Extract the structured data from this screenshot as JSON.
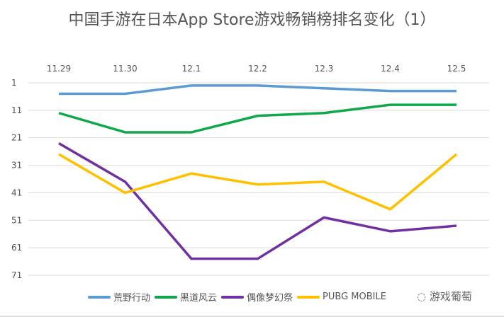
{
  "chart_data": {
    "type": "line",
    "title": "中国手游在日本App Store游戏畅销榜排名变化（1）",
    "categories": [
      "11.29",
      "11.30",
      "12.1",
      "12.2",
      "12.3",
      "12.4",
      "12.5"
    ],
    "y_ticks": [
      1,
      11,
      21,
      31,
      41,
      51,
      61,
      71
    ],
    "ylim": [
      1,
      71
    ],
    "y_reversed": true,
    "x_axis_position": "top",
    "grid": true,
    "legend_position": "bottom",
    "series": [
      {
        "name": "荒野行动",
        "color": "#5b9bd5",
        "values": [
          5,
          5,
          2,
          2,
          3,
          4,
          4
        ]
      },
      {
        "name": "黑道风云",
        "color": "#0fa84a",
        "values": [
          12,
          19,
          19,
          13,
          12,
          9,
          9
        ]
      },
      {
        "name": "偶像梦幻祭",
        "color": "#7030a0",
        "values": [
          23,
          37,
          65,
          65,
          50,
          55,
          53
        ]
      },
      {
        "name": "PUBG MOBILE",
        "color": "#ffc000",
        "values": [
          27,
          41,
          34,
          38,
          37,
          47,
          27
        ]
      }
    ]
  },
  "watermark": "游戏葡萄"
}
